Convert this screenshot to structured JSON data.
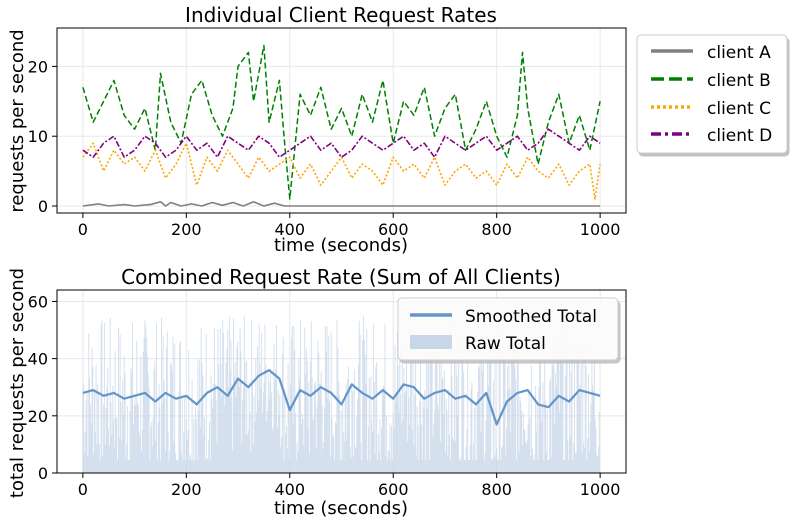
{
  "chart_data": [
    {
      "type": "line",
      "title": "Individual Client Request Rates",
      "xlabel": "time (seconds)",
      "ylabel": "requests per second",
      "xlim": [
        -50,
        1050
      ],
      "ylim": [
        -1,
        25.5
      ],
      "xticks": [
        0,
        200,
        400,
        600,
        800,
        1000
      ],
      "yticks": [
        0,
        10,
        20
      ],
      "xtick_labels": [
        "0",
        "200",
        "400",
        "600",
        "800",
        "1000"
      ],
      "ytick_labels": [
        "0",
        "10",
        "20"
      ],
      "grid": true,
      "legend_position": "outside-right",
      "legend": [
        "client A",
        "client B",
        "client C",
        "client D"
      ],
      "series": [
        {
          "name": "client A",
          "color": "#808080",
          "style": "solid",
          "x": [
            0,
            30,
            50,
            80,
            100,
            130,
            150,
            160,
            170,
            190,
            210,
            230,
            250,
            270,
            290,
            310,
            330,
            350,
            370,
            390,
            400,
            420,
            500,
            600,
            700,
            800,
            900,
            1000
          ],
          "values": [
            0,
            0.3,
            0,
            0.2,
            0,
            0.2,
            0.6,
            0,
            0.5,
            0,
            0.3,
            0,
            0.5,
            0.1,
            0.5,
            0,
            0.6,
            0,
            0.4,
            0,
            0,
            0,
            0,
            0,
            0,
            0,
            0,
            0
          ]
        },
        {
          "name": "client B",
          "color": "#008000",
          "style": "dashed",
          "x": [
            0,
            20,
            40,
            60,
            80,
            100,
            120,
            140,
            150,
            170,
            190,
            210,
            230,
            250,
            270,
            290,
            300,
            320,
            330,
            350,
            360,
            380,
            390,
            400,
            420,
            440,
            460,
            480,
            500,
            520,
            540,
            560,
            580,
            600,
            620,
            640,
            660,
            680,
            700,
            720,
            740,
            760,
            780,
            800,
            820,
            840,
            850,
            860,
            880,
            900,
            920,
            940,
            960,
            980,
            1000
          ],
          "values": [
            17,
            12,
            15,
            18,
            13,
            11,
            14,
            8,
            19,
            12,
            9,
            16,
            18,
            13,
            10,
            14,
            20,
            22,
            15,
            23,
            12,
            18,
            9,
            1,
            16,
            13,
            17,
            11,
            14,
            10,
            16,
            12,
            18,
            9,
            15,
            13,
            17,
            10,
            14,
            16,
            8,
            11,
            15,
            10,
            7,
            13,
            22,
            14,
            6,
            12,
            16,
            9,
            13,
            8,
            15
          ]
        },
        {
          "name": "client C",
          "color": "#FFA500",
          "style": "dotted",
          "x": [
            0,
            20,
            40,
            60,
            80,
            100,
            120,
            140,
            160,
            180,
            200,
            220,
            240,
            260,
            280,
            300,
            320,
            340,
            360,
            380,
            400,
            420,
            440,
            460,
            480,
            500,
            520,
            540,
            560,
            580,
            600,
            620,
            640,
            660,
            680,
            700,
            720,
            740,
            760,
            780,
            800,
            820,
            840,
            860,
            880,
            900,
            920,
            940,
            960,
            980,
            990,
            1000
          ],
          "values": [
            7,
            9,
            5,
            8,
            6,
            7,
            5,
            8,
            4,
            6,
            9,
            3,
            7,
            5,
            8,
            6,
            4,
            7,
            5,
            6,
            7,
            4,
            6,
            3,
            5,
            7,
            4,
            6,
            5,
            3,
            7,
            5,
            6,
            4,
            7,
            3,
            5,
            6,
            4,
            5,
            3,
            6,
            4,
            7,
            5,
            4,
            6,
            3,
            5,
            6,
            1,
            6
          ]
        },
        {
          "name": "client D",
          "color": "#800080",
          "style": "dashdot",
          "x": [
            0,
            20,
            40,
            60,
            80,
            100,
            120,
            140,
            160,
            180,
            200,
            220,
            240,
            260,
            280,
            300,
            320,
            340,
            360,
            380,
            400,
            420,
            440,
            460,
            480,
            500,
            520,
            540,
            560,
            580,
            600,
            620,
            640,
            660,
            680,
            700,
            720,
            740,
            760,
            780,
            800,
            820,
            840,
            860,
            880,
            900,
            920,
            940,
            960,
            980,
            1000
          ],
          "values": [
            8,
            7,
            9,
            10,
            7,
            8,
            10,
            9,
            7,
            8,
            10,
            8,
            9,
            7,
            10,
            9,
            8,
            10,
            9,
            7,
            8,
            9,
            10,
            8,
            9,
            7,
            8,
            10,
            9,
            8,
            9,
            10,
            8,
            9,
            7,
            10,
            9,
            8,
            9,
            10,
            8,
            9,
            10,
            8,
            9,
            11,
            10,
            9,
            8,
            10,
            9
          ]
        }
      ]
    },
    {
      "type": "area",
      "title": "Combined Request Rate (Sum of All Clients)",
      "xlabel": "time (seconds)",
      "ylabel": "total requests per second",
      "xlim": [
        -50,
        1050
      ],
      "ylim": [
        0,
        64
      ],
      "xticks": [
        0,
        200,
        400,
        600,
        800,
        1000
      ],
      "yticks": [
        0,
        20,
        40,
        60
      ],
      "xtick_labels": [
        "0",
        "200",
        "400",
        "600",
        "800",
        "1000"
      ],
      "ytick_labels": [
        "0",
        "20",
        "40",
        "60"
      ],
      "grid": true,
      "legend_position": "top-right",
      "legend": [
        "Smoothed Total",
        "Raw Total"
      ],
      "series": [
        {
          "name": "Smoothed Total",
          "color": "#6495C8",
          "style": "line",
          "x": [
            0,
            20,
            40,
            60,
            80,
            100,
            120,
            140,
            160,
            180,
            200,
            220,
            240,
            260,
            280,
            300,
            320,
            340,
            360,
            380,
            400,
            420,
            440,
            460,
            480,
            500,
            520,
            540,
            560,
            580,
            600,
            620,
            640,
            660,
            680,
            700,
            720,
            740,
            760,
            780,
            800,
            820,
            840,
            860,
            880,
            900,
            920,
            940,
            960,
            980,
            1000
          ],
          "values": [
            28,
            29,
            27,
            28,
            26,
            27,
            28,
            25,
            28,
            26,
            27,
            24,
            28,
            30,
            27,
            33,
            30,
            34,
            36,
            33,
            22,
            29,
            27,
            30,
            28,
            24,
            31,
            28,
            26,
            29,
            26,
            31,
            30,
            26,
            28,
            29,
            26,
            27,
            24,
            28,
            17,
            25,
            28,
            29,
            24,
            23,
            27,
            25,
            29,
            28,
            27
          ]
        },
        {
          "name": "Raw Total",
          "color": "#C8D7E8",
          "style": "bars",
          "peak_min": 15,
          "peak_max": 60
        }
      ]
    }
  ]
}
